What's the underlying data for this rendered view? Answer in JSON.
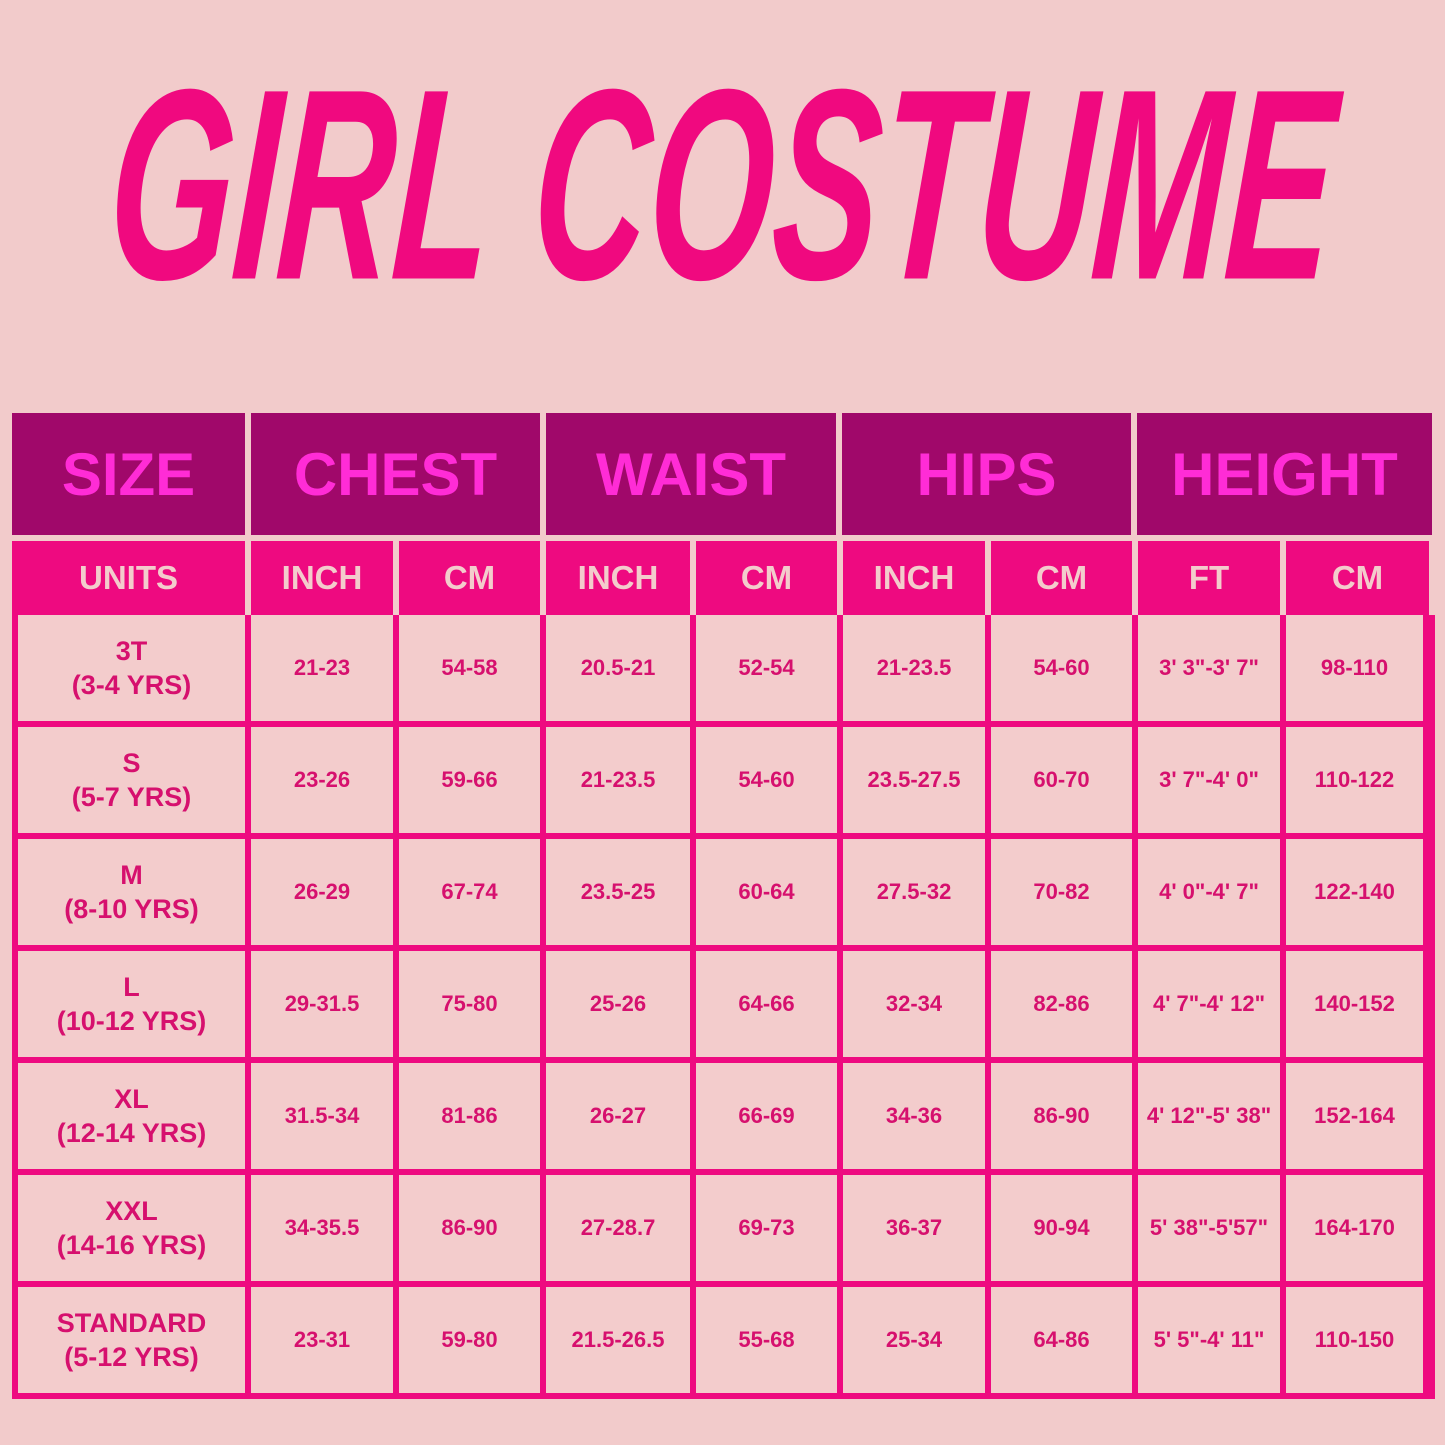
{
  "title": "GIRL COSTUME",
  "colors": {
    "background": "#f2cbcb",
    "title": "#f0097f",
    "header_bg": "#a0086a",
    "header_text": "#ff2cd6",
    "units_bg": "#ee0a80",
    "cell_text": "#d6106e"
  },
  "headers": [
    "SIZE",
    "CHEST",
    "WAIST",
    "HIPS",
    "HEIGHT"
  ],
  "units": [
    "UNITS",
    "INCH",
    "CM",
    "INCH",
    "CM",
    "INCH",
    "CM",
    "FT",
    "CM"
  ],
  "rows": [
    [
      "3T\n(3-4 YRS)",
      "21-23",
      "54-58",
      "20.5-21",
      "52-54",
      "21-23.5",
      "54-60",
      "3' 3\"-3' 7\"",
      "98-110"
    ],
    [
      "S\n(5-7 YRS)",
      "23-26",
      "59-66",
      "21-23.5",
      "54-60",
      "23.5-27.5",
      "60-70",
      "3' 7\"-4' 0\"",
      "110-122"
    ],
    [
      "M\n(8-10 YRS)",
      "26-29",
      "67-74",
      "23.5-25",
      "60-64",
      "27.5-32",
      "70-82",
      "4' 0\"-4' 7\"",
      "122-140"
    ],
    [
      "L\n(10-12 YRS)",
      "29-31.5",
      "75-80",
      "25-26",
      "64-66",
      "32-34",
      "82-86",
      "4' 7\"-4' 12\"",
      "140-152"
    ],
    [
      "XL\n(12-14 YRS)",
      "31.5-34",
      "81-86",
      "26-27",
      "66-69",
      "34-36",
      "86-90",
      "4' 12\"-5' 38\"",
      "152-164"
    ],
    [
      "XXL\n(14-16 YRS)",
      "34-35.5",
      "86-90",
      "27-28.7",
      "69-73",
      "36-37",
      "90-94",
      "5' 38\"-5'57\"",
      "164-170"
    ],
    [
      "STANDARD\n(5-12 YRS)",
      "23-31",
      "59-80",
      "21.5-26.5",
      "55-68",
      "25-34",
      "64-86",
      "5' 5\"-4' 11\"",
      "110-150"
    ]
  ]
}
